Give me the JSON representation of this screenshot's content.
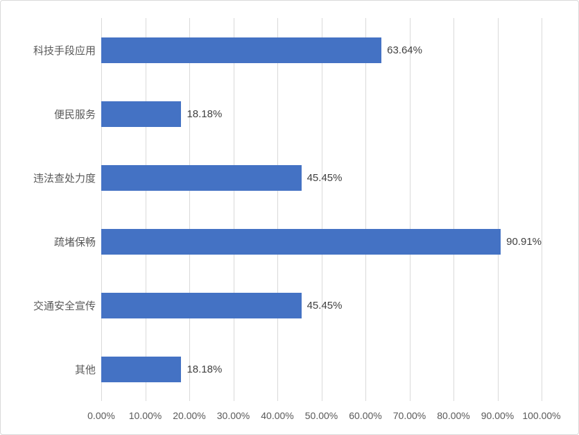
{
  "chart": {
    "background": "#FFFFFF",
    "border_color": "#D9D9D9",
    "gridline_color": "#D9D9D9",
    "bar_color": "#4472C4",
    "text_color": "#595959",
    "value_text_color": "#404040"
  },
  "chart_data": {
    "type": "bar",
    "orientation": "horizontal",
    "title": "",
    "xlabel": "",
    "ylabel": "",
    "legend": "none",
    "grid": "vertical",
    "xlim": [
      0,
      100
    ],
    "categories": [
      "科技手段应用",
      "便民服务",
      "违法查处力度",
      "疏堵保畅",
      "交通安全宣传",
      "其他"
    ],
    "values": [
      63.64,
      18.18,
      45.45,
      90.91,
      45.45,
      18.18
    ],
    "value_labels": [
      "63.64%",
      "18.18%",
      "45.45%",
      "90.91%",
      "45.45%",
      "18.18%"
    ],
    "x_ticks": [
      0,
      10,
      20,
      30,
      40,
      50,
      60,
      70,
      80,
      90,
      100
    ],
    "x_tick_labels": [
      "0.00%",
      "10.00%",
      "20.00%",
      "30.00%",
      "40.00%",
      "50.00%",
      "60.00%",
      "70.00%",
      "80.00%",
      "90.00%",
      "100.00%"
    ]
  }
}
